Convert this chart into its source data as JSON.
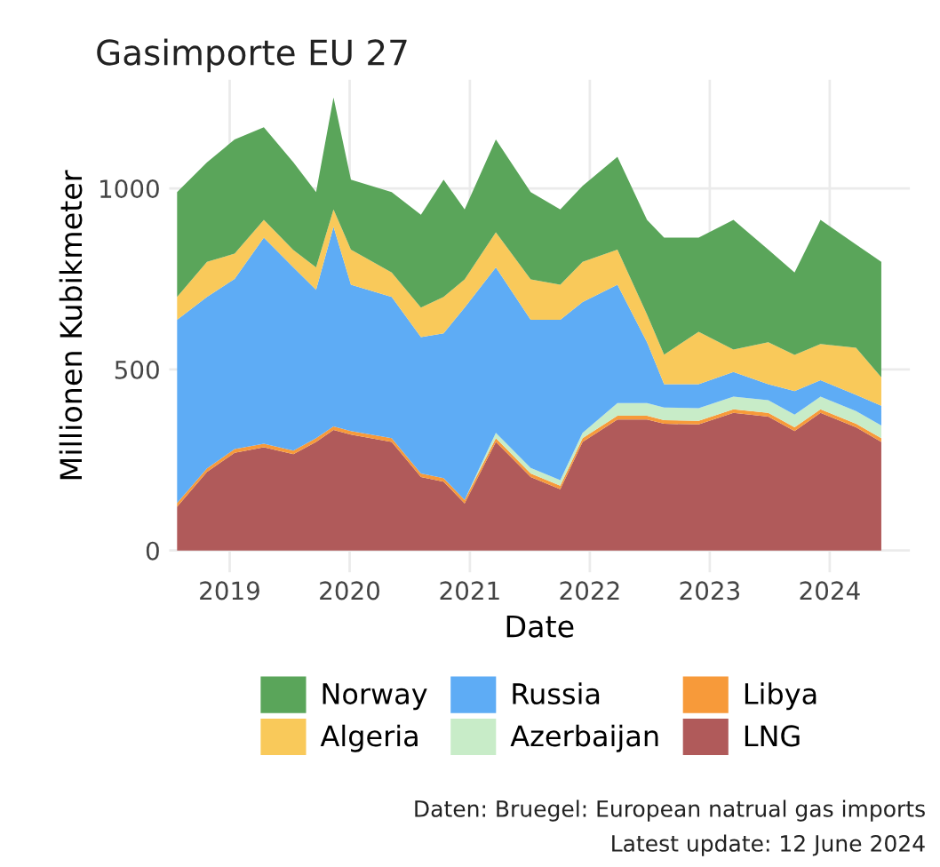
{
  "chart_data": {
    "type": "area",
    "stacked": true,
    "title": "Gasimporte EU 27",
    "xlabel": "Date",
    "ylabel": "Millionen Kubikmeter",
    "x": [
      "2018-07-25",
      "2018-10-24",
      "2019-01-16",
      "2019-04-15",
      "2019-07-14",
      "2019-09-21",
      "2019-11-13",
      "2020-01-05",
      "2020-05-08",
      "2020-08-05",
      "2020-10-13",
      "2020-12-16",
      "2021-03-21",
      "2021-07-05",
      "2021-10-03",
      "2021-12-10",
      "2022-03-26",
      "2022-06-24",
      "2022-08-15",
      "2022-11-28",
      "2023-03-14",
      "2023-06-28",
      "2023-09-16",
      "2023-12-04",
      "2024-03-21",
      "2024-06-06"
    ],
    "series": [
      {
        "name": "LNG",
        "color": "#b05a5a",
        "values": [
          121,
          217,
          270,
          285,
          266,
          300,
          333,
          320,
          300,
          203,
          190,
          130,
          300,
          203,
          169,
          300,
          362,
          362,
          350,
          348,
          380,
          370,
          330,
          380,
          340,
          300
        ]
      },
      {
        "name": "Libya",
        "color": "#f79a3a",
        "values": [
          10,
          10,
          10,
          10,
          10,
          10,
          10,
          10,
          10,
          10,
          10,
          10,
          10,
          10,
          10,
          10,
          10,
          10,
          10,
          10,
          10,
          10,
          10,
          10,
          10,
          10
        ]
      },
      {
        "name": "Azerbaijan",
        "color": "#c8ecc8",
        "values": [
          0,
          0,
          0,
          0,
          0,
          0,
          0,
          0,
          0,
          0,
          0,
          0,
          15,
          15,
          15,
          15,
          35,
          35,
          35,
          35,
          35,
          35,
          35,
          35,
          35,
          35
        ]
      },
      {
        "name": "Russia",
        "color": "#5eacf5",
        "values": [
          506,
          473,
          470,
          569,
          506,
          410,
          551,
          404,
          390,
          376,
          400,
          531,
          457,
          409,
          443,
          361,
          327,
          168,
          64,
          66,
          68,
          44,
          65,
          45,
          45,
          55
        ]
      },
      {
        "name": "Algeria",
        "color": "#f9c95a",
        "values": [
          63,
          97,
          70,
          49,
          48,
          62,
          48,
          97,
          68,
          82,
          100,
          78,
          97,
          112,
          97,
          111,
          97,
          77,
          82,
          145,
          62,
          116,
          100,
          100,
          130,
          78
        ]
      },
      {
        "name": "Norway",
        "color": "#5aa55a",
        "values": [
          290,
          275,
          315,
          256,
          242,
          208,
          309,
          193,
          222,
          256,
          324,
          193,
          256,
          241,
          208,
          210,
          256,
          261,
          323,
          260,
          358,
          256,
          228,
          343,
          285,
          319
        ]
      }
    ],
    "xlim": [
      "2018-07-01",
      "2024-09-01"
    ],
    "xticks": [
      {
        "value": "2019-01-01",
        "label": "2019"
      },
      {
        "value": "2020-01-01",
        "label": "2020"
      },
      {
        "value": "2021-01-01",
        "label": "2021"
      },
      {
        "value": "2022-01-01",
        "label": "2022"
      },
      {
        "value": "2023-01-01",
        "label": "2023"
      },
      {
        "value": "2024-01-01",
        "label": "2024"
      }
    ],
    "ylim": [
      -60,
      1300
    ],
    "yticks": [
      0,
      500,
      1000
    ],
    "grid": true,
    "legend": "bottom",
    "annotations": [
      "Daten: Bruegel: European natrual gas imports",
      "Latest update: 12 June 2024"
    ]
  }
}
